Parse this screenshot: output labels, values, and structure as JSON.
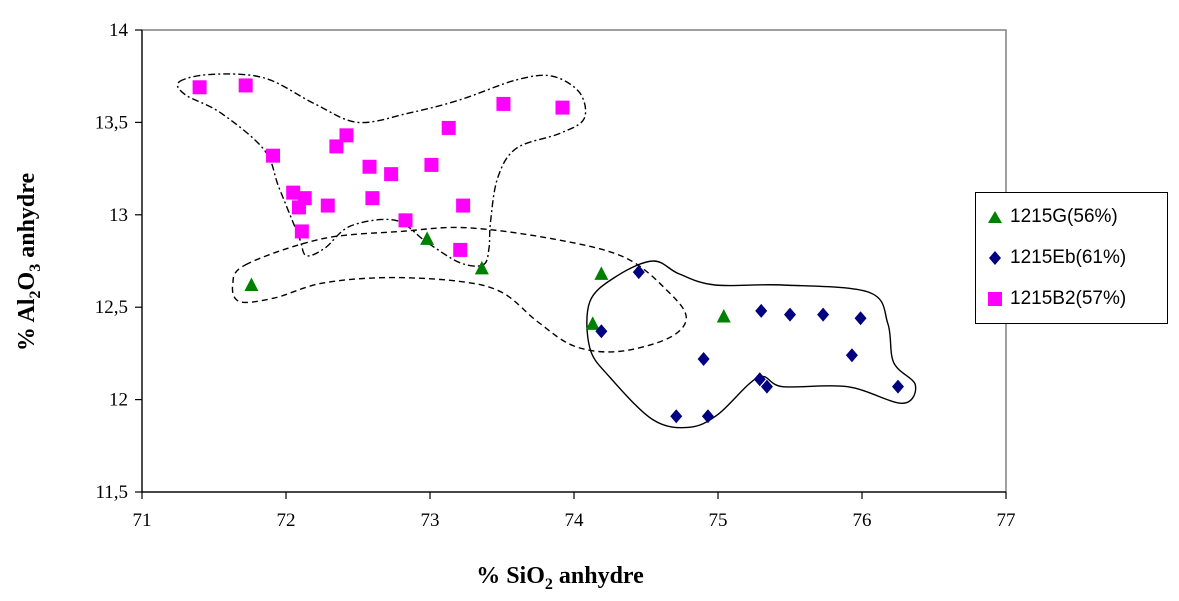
{
  "chart_data": {
    "type": "scatter",
    "xlabel_prefix": "% SiO",
    "xlabel_sub": "2",
    "xlabel_suffix": " anhydre",
    "ylabel_prefix": "% Al",
    "ylabel_sub1": "2",
    "ylabel_mid": "O",
    "ylabel_sub2": "3",
    "ylabel_suffix": " anhydre",
    "xlim": [
      71,
      77
    ],
    "ylim": [
      11.5,
      14
    ],
    "x_ticks": [
      "71",
      "72",
      "73",
      "74",
      "75",
      "76",
      "77"
    ],
    "y_ticks": [
      "11,5",
      "12",
      "12,5",
      "13",
      "13,5",
      "14"
    ],
    "grid": false,
    "legend_position": "right",
    "series": [
      {
        "name": "1215G(56%)",
        "marker": "triangle",
        "color": "#008000",
        "points": [
          [
            71.76,
            12.62
          ],
          [
            72.98,
            12.87
          ],
          [
            73.36,
            12.71
          ],
          [
            74.13,
            12.41
          ],
          [
            74.19,
            12.68
          ],
          [
            75.04,
            12.45
          ]
        ]
      },
      {
        "name": "1215Eb(61%)",
        "marker": "diamond",
        "color": "#000080",
        "points": [
          [
            74.45,
            12.69
          ],
          [
            74.19,
            12.37
          ],
          [
            74.9,
            12.22
          ],
          [
            75.3,
            12.48
          ],
          [
            75.5,
            12.46
          ],
          [
            75.73,
            12.46
          ],
          [
            75.99,
            12.44
          ],
          [
            75.93,
            12.24
          ],
          [
            75.29,
            12.11
          ],
          [
            75.34,
            12.07
          ],
          [
            76.25,
            12.07
          ],
          [
            74.71,
            11.91
          ],
          [
            74.93,
            11.91
          ]
        ]
      },
      {
        "name": "1215B2(57%)",
        "marker": "square",
        "color": "#ff00ff",
        "points": [
          [
            71.4,
            13.69
          ],
          [
            71.72,
            13.7
          ],
          [
            71.91,
            13.32
          ],
          [
            72.05,
            13.12
          ],
          [
            72.09,
            13.04
          ],
          [
            72.13,
            13.09
          ],
          [
            72.11,
            12.91
          ],
          [
            72.29,
            13.05
          ],
          [
            72.35,
            13.37
          ],
          [
            72.42,
            13.43
          ],
          [
            72.58,
            13.26
          ],
          [
            72.6,
            13.09
          ],
          [
            72.73,
            13.22
          ],
          [
            72.83,
            12.97
          ],
          [
            73.01,
            13.27
          ],
          [
            73.13,
            13.47
          ],
          [
            73.21,
            12.81
          ],
          [
            73.23,
            13.05
          ],
          [
            73.51,
            13.6
          ],
          [
            73.92,
            13.58
          ]
        ]
      }
    ],
    "outlines": [
      {
        "group": "1215B2(57%)",
        "style": "dash-dot",
        "path": [
          [
            71.26,
            13.72
          ],
          [
            71.48,
            13.76
          ],
          [
            71.85,
            13.74
          ],
          [
            72.2,
            13.6
          ],
          [
            72.5,
            13.5
          ],
          [
            72.85,
            13.55
          ],
          [
            73.2,
            13.62
          ],
          [
            73.6,
            13.73
          ],
          [
            73.85,
            13.75
          ],
          [
            74.04,
            13.66
          ],
          [
            74.07,
            13.52
          ],
          [
            73.9,
            13.44
          ],
          [
            73.6,
            13.36
          ],
          [
            73.47,
            13.2
          ],
          [
            73.42,
            12.96
          ],
          [
            73.41,
            12.82
          ],
          [
            73.37,
            12.73
          ],
          [
            73.21,
            12.74
          ],
          [
            72.98,
            12.85
          ],
          [
            72.76,
            12.97
          ],
          [
            72.45,
            12.94
          ],
          [
            72.27,
            12.82
          ],
          [
            72.14,
            12.78
          ],
          [
            72.09,
            12.88
          ],
          [
            71.95,
            13.15
          ],
          [
            71.85,
            13.35
          ],
          [
            71.55,
            13.55
          ],
          [
            71.3,
            13.65
          ]
        ]
      },
      {
        "group": "1215G(56%)",
        "style": "dashed",
        "path": [
          [
            71.72,
            12.73
          ],
          [
            72.25,
            12.87
          ],
          [
            72.8,
            12.91
          ],
          [
            73.25,
            12.93
          ],
          [
            73.85,
            12.87
          ],
          [
            74.35,
            12.77
          ],
          [
            74.66,
            12.58
          ],
          [
            74.78,
            12.44
          ],
          [
            74.65,
            12.33
          ],
          [
            74.3,
            12.26
          ],
          [
            74.0,
            12.29
          ],
          [
            73.75,
            12.42
          ],
          [
            73.5,
            12.58
          ],
          [
            73.2,
            12.64
          ],
          [
            72.7,
            12.66
          ],
          [
            72.25,
            12.63
          ],
          [
            71.92,
            12.55
          ],
          [
            71.68,
            12.53
          ],
          [
            71.63,
            12.62
          ]
        ]
      },
      {
        "group": "1215Eb(61%)",
        "style": "solid",
        "path": [
          [
            74.11,
            12.53
          ],
          [
            74.3,
            12.67
          ],
          [
            74.55,
            12.75
          ],
          [
            74.73,
            12.68
          ],
          [
            74.98,
            12.62
          ],
          [
            75.45,
            12.62
          ],
          [
            76.05,
            12.58
          ],
          [
            76.18,
            12.41
          ],
          [
            76.22,
            12.2
          ],
          [
            76.37,
            12.08
          ],
          [
            76.28,
            11.98
          ],
          [
            75.9,
            12.07
          ],
          [
            75.45,
            12.07
          ],
          [
            75.28,
            12.12
          ],
          [
            75.0,
            11.92
          ],
          [
            74.8,
            11.85
          ],
          [
            74.55,
            11.89
          ],
          [
            74.25,
            12.12
          ],
          [
            74.11,
            12.28
          ]
        ]
      }
    ]
  }
}
